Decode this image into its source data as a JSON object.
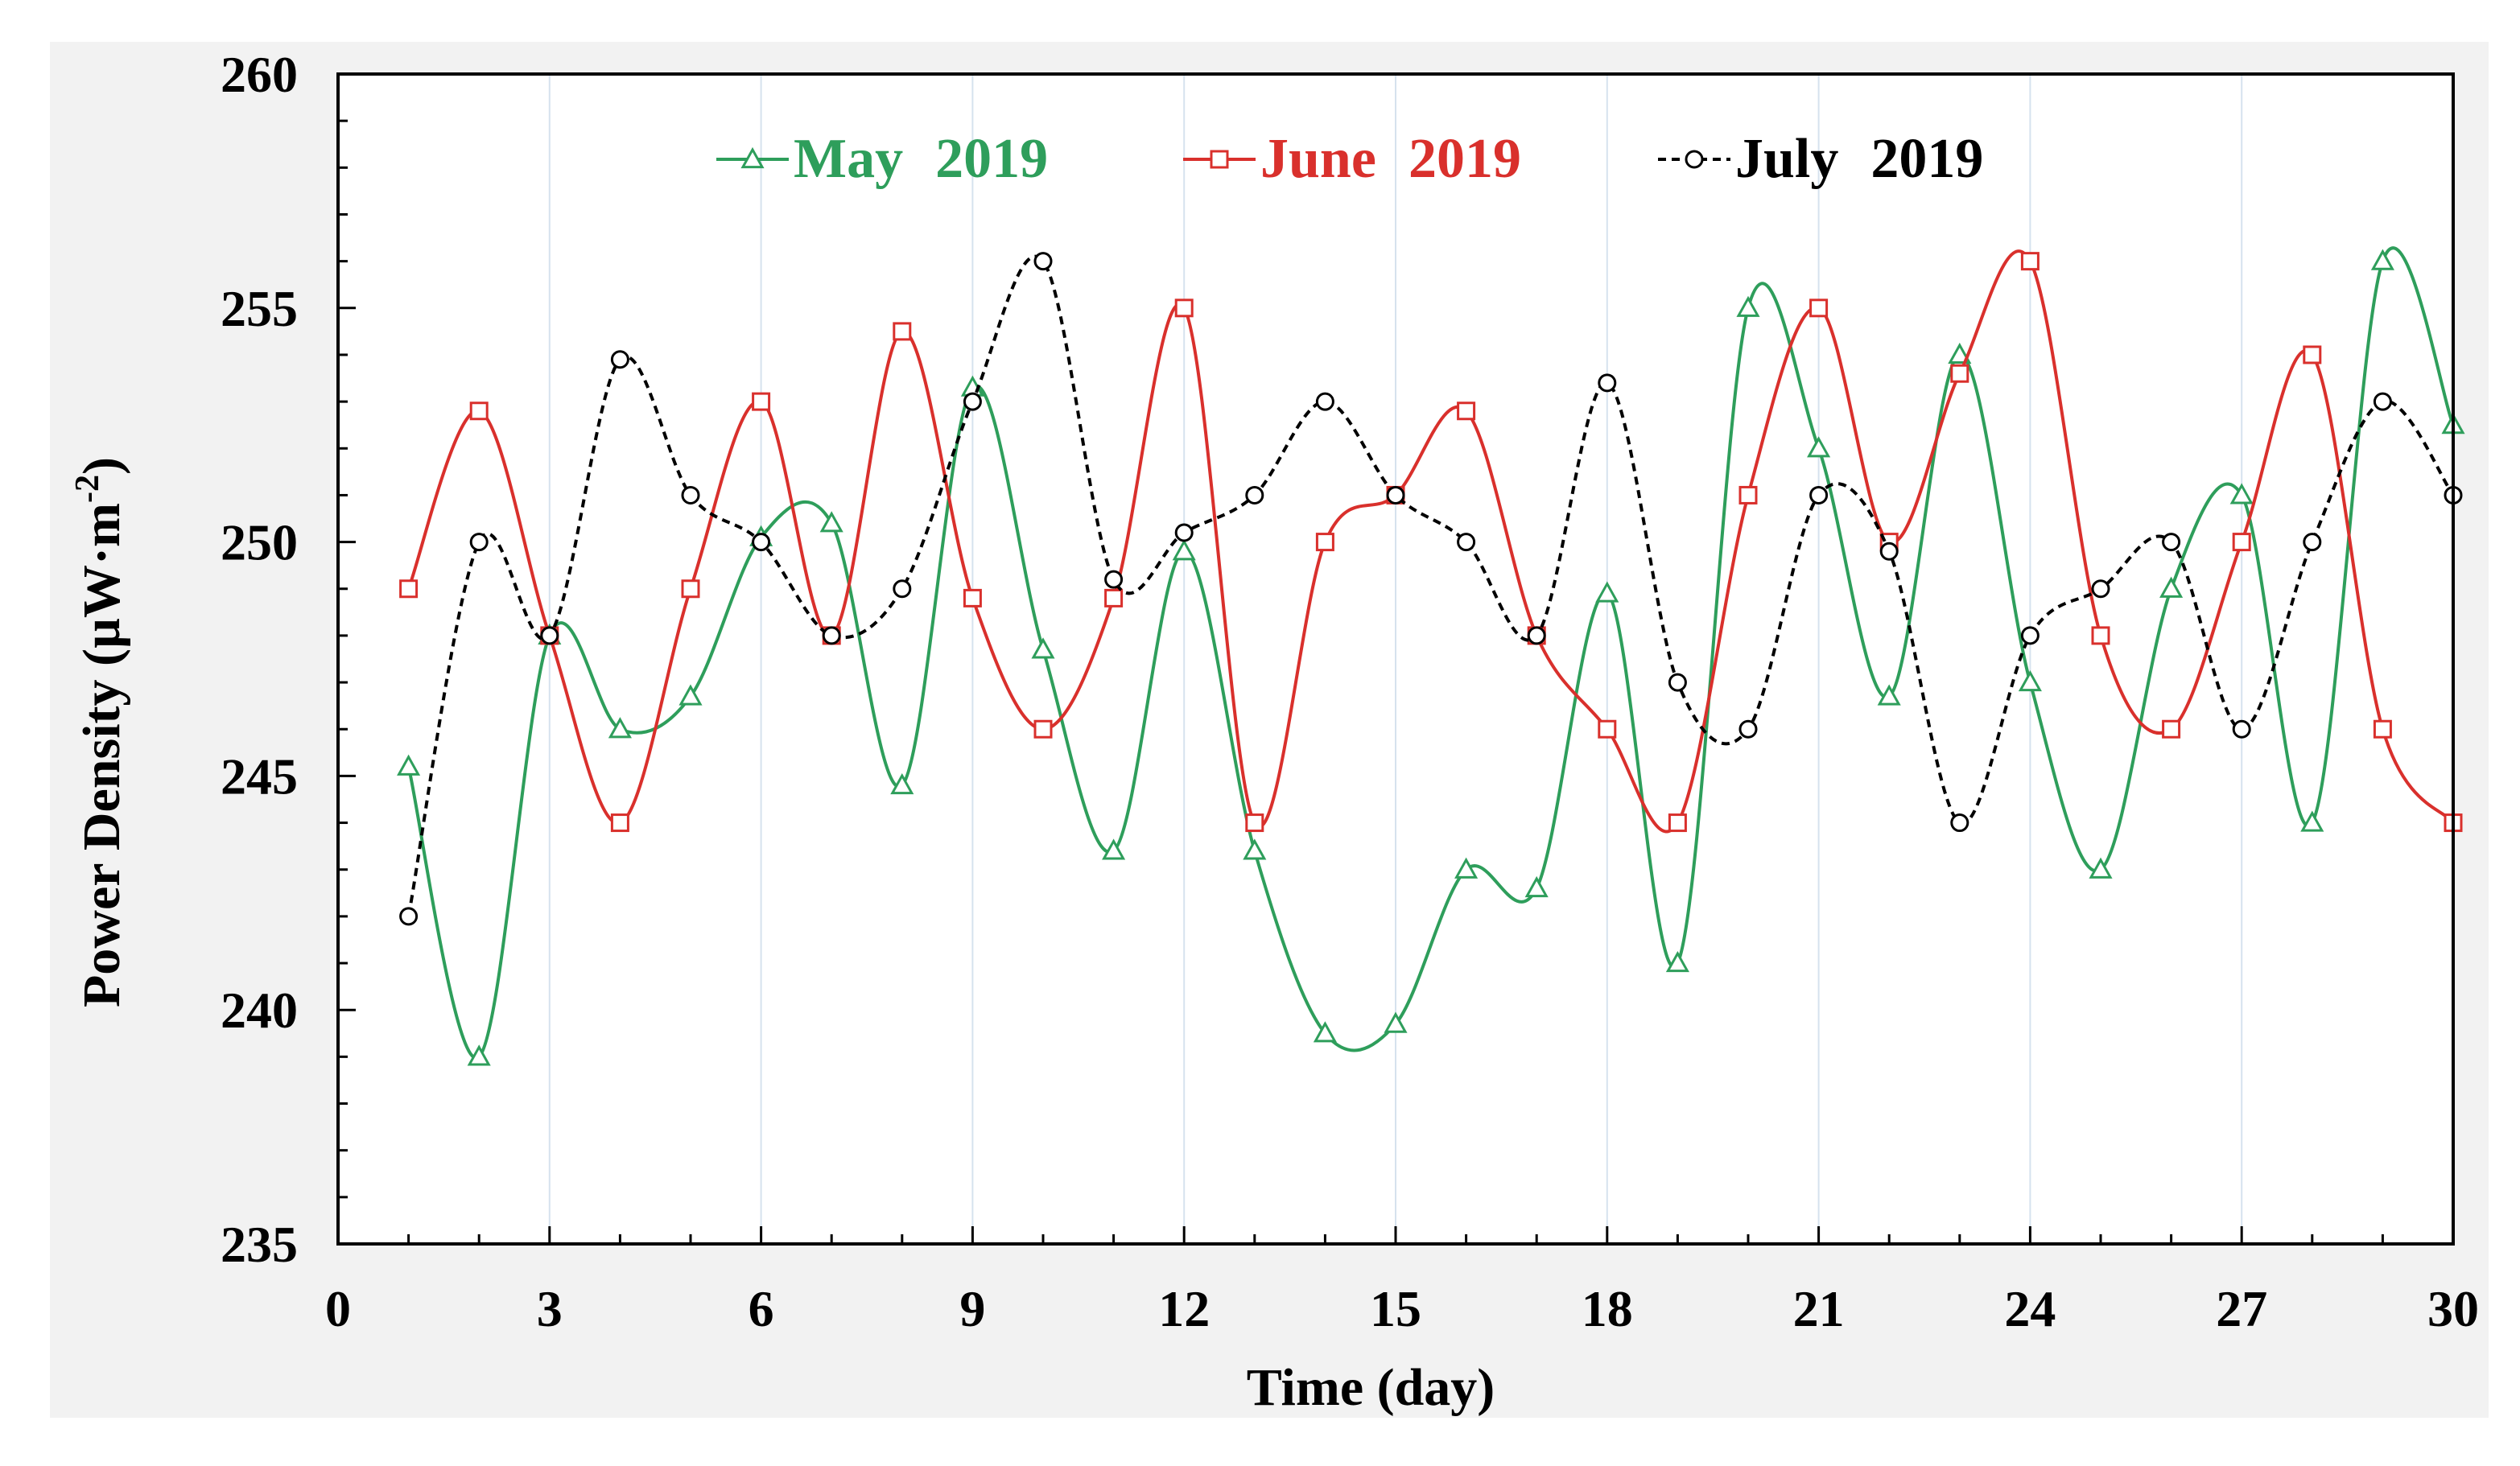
{
  "chart_data": {
    "type": "line",
    "title": "",
    "xlabel": "Time (day)",
    "ylabel": "Power Density (µW·m",
    "ylabel_superscript": "-2",
    "ylabel_close": ")",
    "xlim": [
      0,
      30
    ],
    "ylim": [
      235,
      260
    ],
    "xticks": [
      "0",
      "3",
      "6",
      "9",
      "12",
      "15",
      "18",
      "21",
      "24",
      "27",
      "30"
    ],
    "yticks": [
      "235",
      "240",
      "245",
      "250",
      "255",
      "260"
    ],
    "grid": "vertical",
    "legend_position": "top-center",
    "x": [
      1,
      2,
      3,
      4,
      5,
      6,
      7,
      8,
      9,
      10,
      11,
      12,
      13,
      14,
      15,
      16,
      17,
      18,
      19,
      20,
      21,
      22,
      23,
      24,
      25,
      26,
      27,
      28,
      29,
      30
    ],
    "series": [
      {
        "name": "May",
        "year": "2019",
        "color": "#2e9e5b",
        "marker": "triangle",
        "line_style": "solid",
        "values": [
          245.2,
          239.0,
          248.0,
          246.0,
          246.7,
          250.1,
          250.4,
          244.8,
          253.3,
          247.7,
          243.4,
          249.8,
          243.4,
          239.5,
          239.7,
          243.0,
          242.6,
          248.9,
          241.0,
          255.0,
          252.0,
          246.7,
          254.0,
          247.0,
          243.0,
          249.0,
          251.0,
          244.0,
          256.0,
          252.5
        ]
      },
      {
        "name": "June",
        "year": "2019",
        "color": "#d9302c",
        "marker": "square",
        "line_style": "solid",
        "values": [
          249.0,
          252.8,
          248.0,
          244.0,
          249.0,
          253.0,
          248.0,
          254.5,
          248.8,
          246.0,
          248.8,
          255.0,
          244.0,
          250.0,
          251.0,
          252.8,
          248.0,
          246.0,
          244.0,
          251.0,
          255.0,
          250.0,
          253.6,
          256.0,
          248.0,
          246.0,
          250.0,
          254.0,
          246.0,
          244.0
        ]
      },
      {
        "name": "July",
        "year": "2019",
        "color": "#000000",
        "marker": "circle",
        "line_style": "dashed",
        "values": [
          242.0,
          250.0,
          248.0,
          253.9,
          251.0,
          250.0,
          248.0,
          249.0,
          253.0,
          256.0,
          249.2,
          250.2,
          251.0,
          253.0,
          251.0,
          250.0,
          248.0,
          253.4,
          247.0,
          246.0,
          251.0,
          249.8,
          244.0,
          248.0,
          249.0,
          250.0,
          246.0,
          250.0,
          253.0,
          251.0
        ]
      }
    ]
  }
}
